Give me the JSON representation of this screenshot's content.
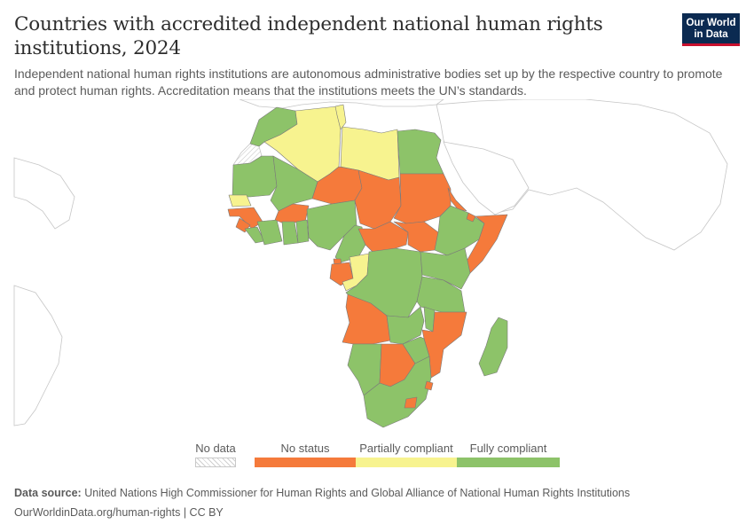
{
  "header": {
    "title": "Countries with accredited independent national human rights institutions, 2024",
    "subtitle": "Independent national human rights institutions are autonomous administrative bodies set up by the respective country to promote and protect human rights. Accreditation means that the institutions meets the UN’s standards."
  },
  "logo": {
    "line1": "Our World",
    "line2": "in Data"
  },
  "legend": {
    "no_data": "No data",
    "no_status": "No status",
    "partial": "Partially compliant",
    "full": "Fully compliant"
  },
  "colors": {
    "no_status": "#f57a3b",
    "partial": "#f7f38f",
    "full": "#8dc369",
    "no_data": "#ffffff",
    "outline": "#b9b9b9"
  },
  "footer": {
    "source_label": "Data source:",
    "source_text": "United Nations High Commissioner for Human Rights and Global Alliance of National Human Rights Institutions",
    "url": "OurWorldinData.org/human-rights | CC BY"
  }
}
